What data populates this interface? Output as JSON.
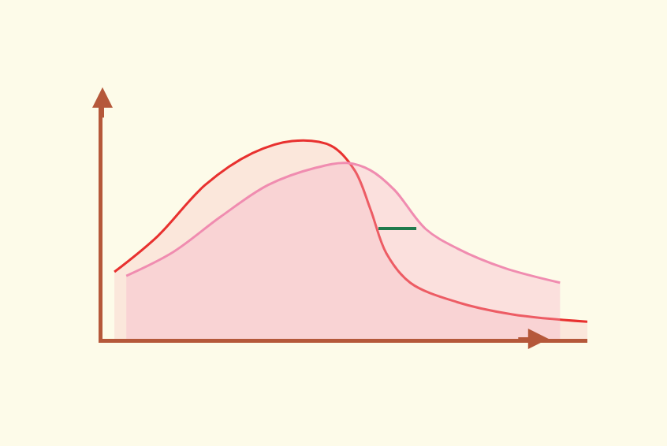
{
  "chart_data": {
    "type": "line",
    "xlim": [
      0,
      110
    ],
    "ylim": [
      0,
      100
    ],
    "tick_labels": false,
    "grid": false,
    "series": [
      {
        "color": "#e8312f",
        "x": [
          2.7,
          12.5,
          23.3,
          34,
          43,
          51.9,
          57.2,
          60.8,
          64.4,
          69.8,
          80.5,
          93,
          110
        ],
        "values": [
          27.4,
          42,
          63,
          76,
          81,
          79,
          69,
          53,
          35,
          23,
          15,
          10,
          7
        ]
      },
      {
        "color": "#f08cb0",
        "x": [
          5.4,
          16,
          26.8,
          37.6,
          48.3,
          55.5,
          60.8,
          66.2,
          73.3,
          80.5,
          91.2,
          103.8
        ],
        "values": [
          25.8,
          35.5,
          50,
          63,
          70,
          72,
          69,
          61,
          45,
          37,
          29,
          23
        ]
      },
      {
        "color": "#1f7a4c",
        "x": [
          62.6,
          71.2
        ],
        "values": [
          45.2,
          45.2
        ]
      }
    ]
  }
}
